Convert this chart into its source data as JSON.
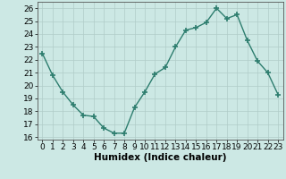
{
  "x": [
    0,
    1,
    2,
    3,
    4,
    5,
    6,
    7,
    8,
    9,
    10,
    11,
    12,
    13,
    14,
    15,
    16,
    17,
    18,
    19,
    20,
    21,
    22,
    23
  ],
  "y": [
    22.5,
    20.8,
    19.5,
    18.5,
    17.7,
    17.6,
    16.7,
    16.3,
    16.3,
    18.3,
    19.5,
    20.9,
    21.4,
    23.0,
    24.3,
    24.5,
    24.9,
    26.0,
    25.2,
    25.5,
    23.5,
    21.9,
    21.0,
    19.3
  ],
  "line_color": "#2d7d6e",
  "marker": "+",
  "markersize": 4,
  "markeredgewidth": 1.2,
  "linewidth": 1.0,
  "bg_color": "#cce8e4",
  "grid_color": "#b0ccc8",
  "xlabel": "Humidex (Indice chaleur)",
  "ylabel_ticks": [
    16,
    17,
    18,
    19,
    20,
    21,
    22,
    23,
    24,
    25,
    26
  ],
  "xlim": [
    -0.5,
    23.5
  ],
  "ylim": [
    15.8,
    26.5
  ],
  "tick_fontsize": 6.5,
  "xlabel_fontsize": 7.5
}
